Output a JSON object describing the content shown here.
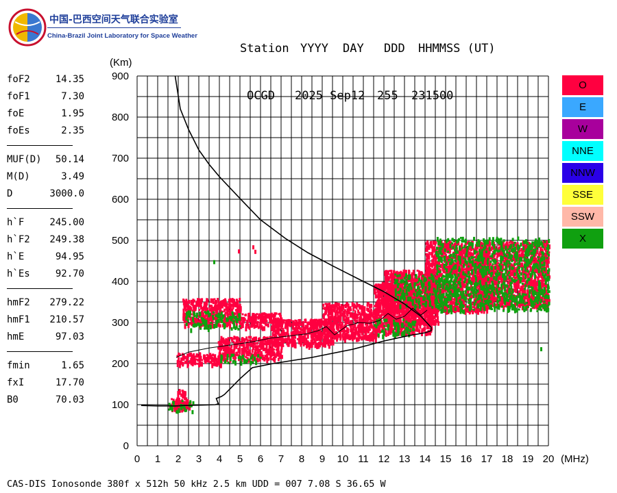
{
  "logo": {
    "org_cn": "中国-巴西空间天气联合实验室",
    "org_en": "China-Brazil Joint Laboratory for Space Weather"
  },
  "header": {
    "labels": [
      "Station",
      "YYYY",
      "DAY",
      "DDD",
      "HHMMSS (UT)"
    ],
    "values": [
      "OCGD",
      "2025 Sep12",
      "255",
      "231500"
    ]
  },
  "params": [
    {
      "name": "foF2",
      "value": "14.35"
    },
    {
      "name": "foF1",
      "value": "7.30"
    },
    {
      "name": "foE",
      "value": "1.95"
    },
    {
      "name": "foEs",
      "value": "2.35"
    },
    {
      "name": "MUF(D)",
      "value": "50.14"
    },
    {
      "name": "M(D)",
      "value": "3.49"
    },
    {
      "name": "D",
      "value": "3000.0"
    },
    {
      "name": "h`F",
      "value": "245.00"
    },
    {
      "name": "h`F2",
      "value": "249.38"
    },
    {
      "name": "h`E",
      "value": "94.95"
    },
    {
      "name": "h`Es",
      "value": "92.70"
    },
    {
      "name": "hmF2",
      "value": "279.22"
    },
    {
      "name": "hmF1",
      "value": "210.57"
    },
    {
      "name": "hmE",
      "value": "97.03"
    },
    {
      "name": "fmin",
      "value": "1.65"
    },
    {
      "name": "fxI",
      "value": "17.70"
    },
    {
      "name": "B0",
      "value": "70.03"
    }
  ],
  "legend": [
    {
      "label": "O",
      "color": "#ff0040"
    },
    {
      "label": "E",
      "color": "#3aa8ff"
    },
    {
      "label": "W",
      "color": "#a8009c"
    },
    {
      "label": "NNE",
      "color": "#00ffff"
    },
    {
      "label": "NNW",
      "color": "#2a00e8"
    },
    {
      "label": "SSE",
      "color": "#ffff3a"
    },
    {
      "label": "SSW",
      "color": "#ffb8a8"
    },
    {
      "label": "X",
      "color": "#10a010"
    }
  ],
  "footer": "CAS-DIS Ionosonde 380f x 512h 50 kHz 2.5 km UDD = 007 7.08 S 36.65 W",
  "chart_data": {
    "type": "scatter",
    "xlabel": "(MHz)",
    "ylabel": "(Km)",
    "xlim": [
      0,
      20
    ],
    "ylim": [
      0,
      900
    ],
    "x_ticks": [
      0,
      1,
      2,
      3,
      4,
      5,
      6,
      7,
      8,
      9,
      10,
      11,
      12,
      13,
      14,
      15,
      16,
      17,
      18,
      19,
      20
    ],
    "y_ticks": [
      0,
      100,
      200,
      300,
      400,
      500,
      600,
      700,
      800,
      900
    ],
    "grid": true,
    "series": [
      {
        "name": "O",
        "color": "#ff0040",
        "regions": [
          {
            "x": [
              1.55,
              2.55
            ],
            "y": [
              88,
              118
            ]
          },
          {
            "x": [
              1.9,
              2.3
            ],
            "y": [
              105,
              140
            ]
          },
          {
            "x": [
              1.9,
              4.2
            ],
            "y": [
              200,
              228
            ]
          },
          {
            "x": [
              3.9,
              7.0
            ],
            "y": [
              212,
              268
            ]
          },
          {
            "x": [
              6.5,
              9.5
            ],
            "y": [
              245,
              310
            ]
          },
          {
            "x": [
              9.0,
              11.7
            ],
            "y": [
              262,
              350
            ]
          },
          {
            "x": [
              11.5,
              14.3
            ],
            "y": [
              275,
              400
            ]
          },
          {
            "x": [
              12.0,
              14.6
            ],
            "y": [
              300,
              430
            ]
          },
          {
            "x": [
              14.0,
              17.0
            ],
            "y": [
              330,
              500
            ]
          },
          {
            "x": [
              16.5,
              20.0
            ],
            "y": [
              340,
              500
            ]
          },
          {
            "x": [
              2.2,
              5.0
            ],
            "y": [
              295,
              360
            ]
          },
          {
            "x": [
              5.0,
              7.0
            ],
            "y": [
              290,
              325
            ]
          }
        ],
        "points": [
          [
            4.9,
            478
          ],
          [
            5.6,
            488
          ],
          [
            5.7,
            477
          ]
        ]
      },
      {
        "name": "X",
        "color": "#10a010",
        "regions": [
          {
            "x": [
              1.5,
              2.7
            ],
            "y": [
              86,
              112
            ]
          },
          {
            "x": [
              2.3,
              5.0
            ],
            "y": [
              285,
              330
            ]
          },
          {
            "x": [
              4.0,
              6.0
            ],
            "y": [
              205,
              225
            ]
          },
          {
            "x": [
              11.5,
              13.5
            ],
            "y": [
              270,
              310
            ]
          },
          {
            "x": [
              12.5,
              15.5
            ],
            "y": [
              340,
              420
            ]
          },
          {
            "x": [
              14.5,
              20.0
            ],
            "y": [
              330,
              510
            ]
          }
        ],
        "points": [
          [
            3.7,
            452
          ],
          [
            19.6,
            240
          ]
        ]
      }
    ],
    "profile_x": [
      0.2,
      1.0,
      1.5,
      1.95,
      2.3,
      3.2,
      3.8,
      3.95,
      3.85,
      4.1,
      4.25,
      5.0,
      5.6,
      6.6,
      8.5,
      10.5,
      12.0,
      13.2,
      14.0,
      14.3,
      14.3,
      13.8,
      13.0,
      12.0,
      10.8,
      9.5,
      8.3,
      7.2,
      6.0,
      5.0,
      4.0,
      3.5,
      3.0,
      2.5,
      2.1,
      1.85
    ],
    "profile_y": [
      98,
      97,
      97,
      97,
      98,
      99,
      100,
      102,
      115,
      120,
      125,
      163,
      190,
      200,
      215,
      235,
      255,
      268,
      275,
      280,
      288,
      315,
      345,
      375,
      405,
      438,
      470,
      505,
      550,
      602,
      655,
      685,
      720,
      770,
      820,
      900
    ],
    "trace_x": [
      1.9,
      2.5,
      3.5,
      4.5,
      5.5,
      6.5,
      7.5,
      8.2,
      8.8,
      9.2,
      9.6,
      10.2,
      10.8,
      11.3,
      11.8,
      12.2,
      12.6,
      13.0,
      13.4,
      13.8,
      14.1
    ],
    "trace_y": [
      215,
      228,
      238,
      245,
      252,
      262,
      268,
      272,
      280,
      290,
      270,
      292,
      300,
      298,
      305,
      322,
      308,
      315,
      335,
      318,
      330
    ]
  }
}
